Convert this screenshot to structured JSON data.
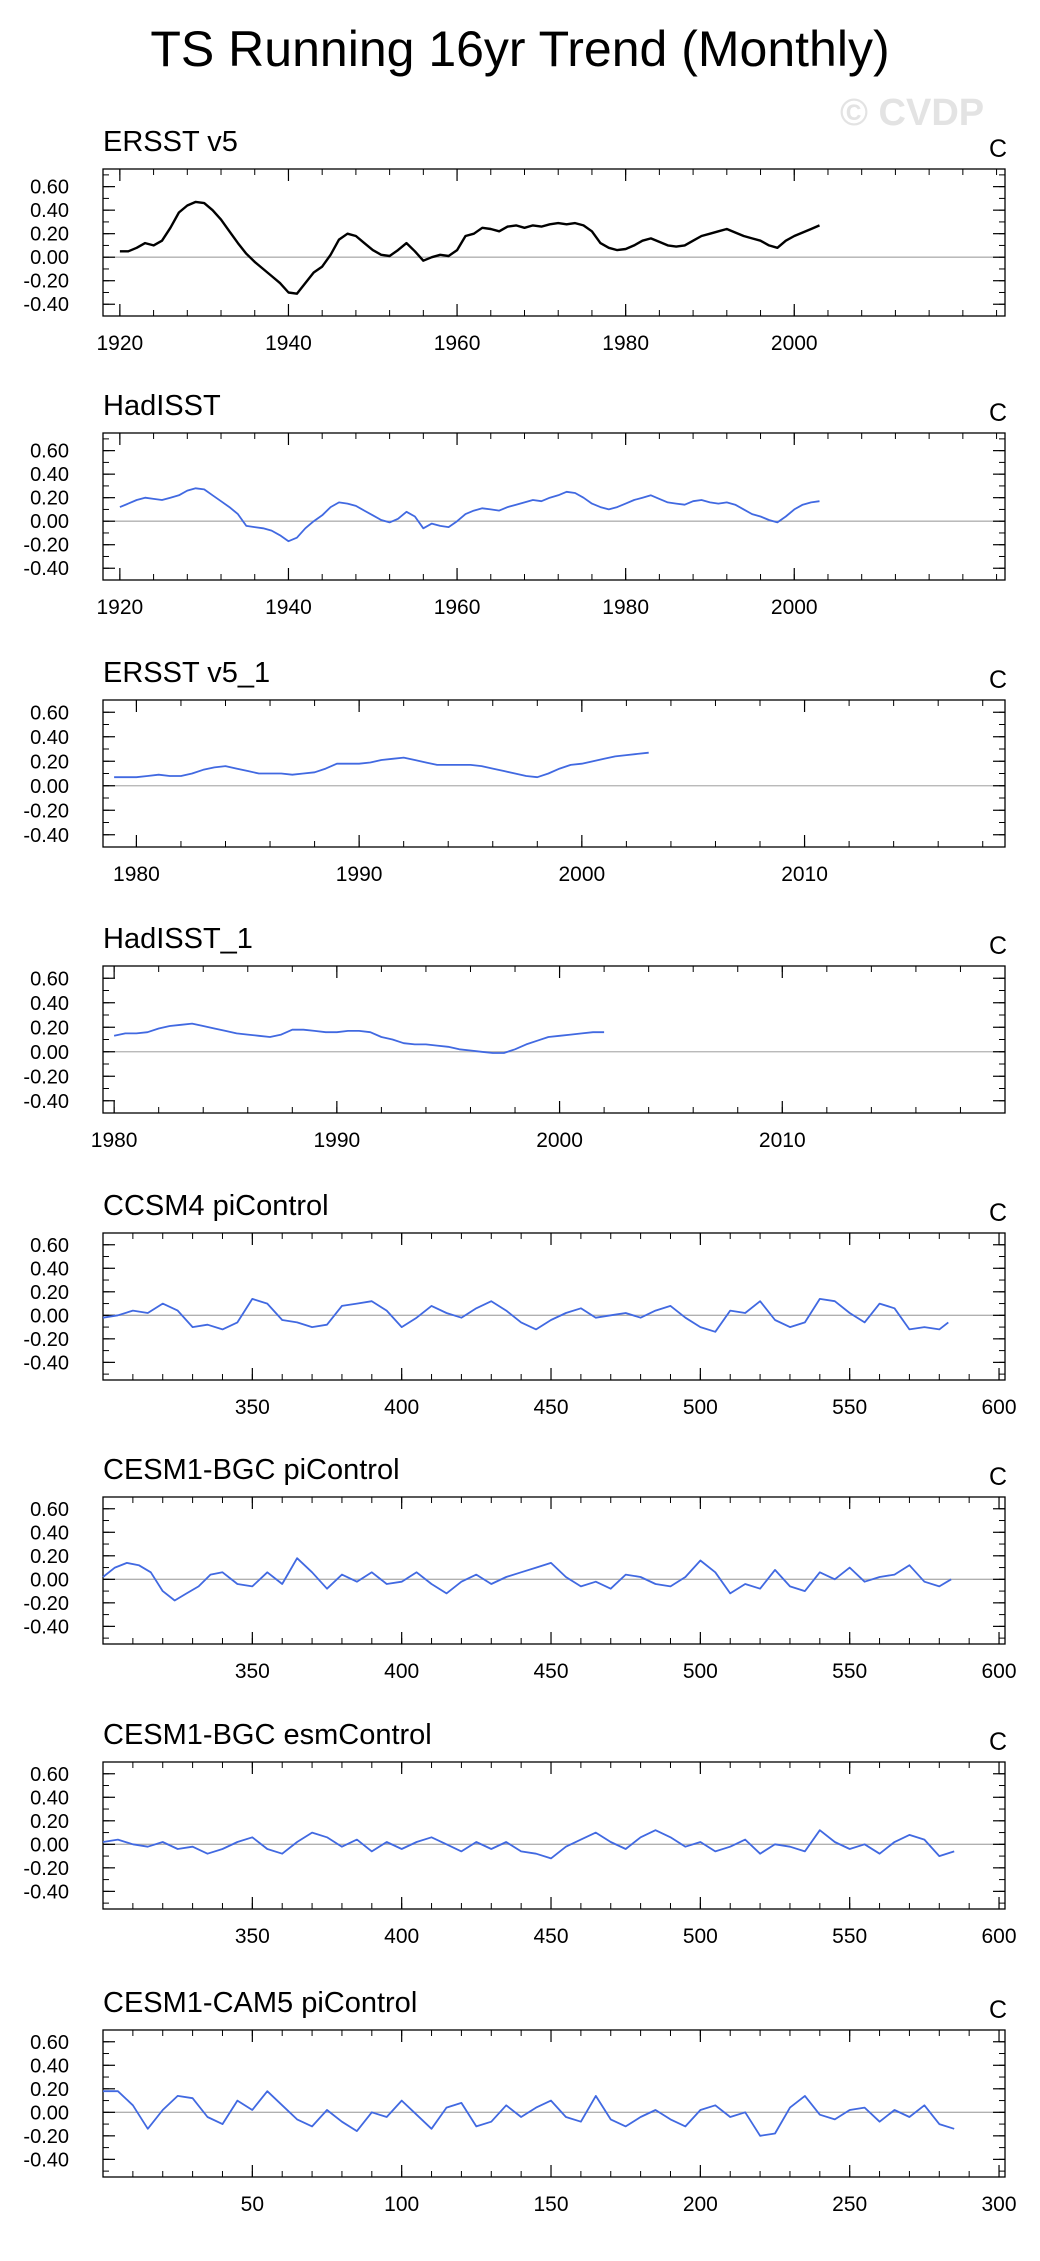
{
  "title": "TS Running 16yr Trend (Monthly)",
  "watermark": "© CVDP",
  "colors": {
    "observed": "#000000",
    "model": "#4169e1",
    "zero_line": "#b0b0b0",
    "axis": "#000000"
  },
  "chart_data": [
    {
      "type": "line",
      "title": "ERSST v5",
      "units": "C",
      "xlim": [
        1918,
        2025
      ],
      "ylim": [
        -0.5,
        0.75
      ],
      "xticks": [
        1920,
        1940,
        1960,
        1980,
        2000
      ],
      "yticks": [
        -0.4,
        -0.2,
        0.0,
        0.2,
        0.4,
        0.6
      ],
      "ytick_labels": [
        "-0.40",
        "-0.20",
        "0.00",
        "0.20",
        "0.40",
        "0.60"
      ],
      "color": "#000000",
      "zero_line": true,
      "x": [
        1920,
        1921,
        1922,
        1923,
        1924,
        1925,
        1926,
        1927,
        1928,
        1929,
        1930,
        1931,
        1932,
        1933,
        1934,
        1935,
        1936,
        1937,
        1938,
        1939,
        1940,
        1941,
        1942,
        1943,
        1944,
        1945,
        1946,
        1947,
        1948,
        1949,
        1950,
        1951,
        1952,
        1953,
        1954,
        1955,
        1956,
        1957,
        1958,
        1959,
        1960,
        1961,
        1962,
        1963,
        1964,
        1965,
        1966,
        1967,
        1968,
        1969,
        1970,
        1971,
        1972,
        1973,
        1974,
        1975,
        1976,
        1977,
        1978,
        1979,
        1980,
        1981,
        1982,
        1983,
        1984,
        1985,
        1986,
        1987,
        1988,
        1989,
        1990,
        1991,
        1992,
        1993,
        1994,
        1995,
        1996,
        1997,
        1998,
        1999,
        2000,
        2001,
        2002,
        2003
      ],
      "y": [
        0.05,
        0.05,
        0.08,
        0.12,
        0.1,
        0.14,
        0.25,
        0.38,
        0.44,
        0.47,
        0.46,
        0.4,
        0.32,
        0.22,
        0.12,
        0.03,
        -0.04,
        -0.1,
        -0.16,
        -0.22,
        -0.3,
        -0.31,
        -0.22,
        -0.13,
        -0.08,
        0.02,
        0.15,
        0.2,
        0.18,
        0.12,
        0.06,
        0.02,
        0.01,
        0.06,
        0.12,
        0.05,
        -0.03,
        0.0,
        0.02,
        0.01,
        0.06,
        0.18,
        0.2,
        0.25,
        0.24,
        0.22,
        0.26,
        0.27,
        0.25,
        0.27,
        0.26,
        0.28,
        0.29,
        0.28,
        0.29,
        0.27,
        0.22,
        0.12,
        0.08,
        0.06,
        0.07,
        0.1,
        0.14,
        0.16,
        0.13,
        0.1,
        0.09,
        0.1,
        0.14,
        0.18,
        0.2,
        0.22,
        0.24,
        0.21,
        0.18,
        0.16,
        0.14,
        0.1,
        0.08,
        0.14,
        0.18,
        0.21,
        0.24,
        0.27
      ]
    },
    {
      "type": "line",
      "title": "HadISST",
      "units": "C",
      "xlim": [
        1918,
        2025
      ],
      "ylim": [
        -0.5,
        0.75
      ],
      "xticks": [
        1920,
        1940,
        1960,
        1980,
        2000
      ],
      "yticks": [
        -0.4,
        -0.2,
        0.0,
        0.2,
        0.4,
        0.6
      ],
      "ytick_labels": [
        "-0.40",
        "-0.20",
        "0.00",
        "0.20",
        "0.40",
        "0.60"
      ],
      "color": "#4169e1",
      "zero_line": true,
      "x": [
        1920,
        1921,
        1922,
        1923,
        1924,
        1925,
        1926,
        1927,
        1928,
        1929,
        1930,
        1931,
        1932,
        1933,
        1934,
        1935,
        1936,
        1937,
        1938,
        1939,
        1940,
        1941,
        1942,
        1943,
        1944,
        1945,
        1946,
        1947,
        1948,
        1949,
        1950,
        1951,
        1952,
        1953,
        1954,
        1955,
        1956,
        1957,
        1958,
        1959,
        1960,
        1961,
        1962,
        1963,
        1964,
        1965,
        1966,
        1967,
        1968,
        1969,
        1970,
        1971,
        1972,
        1973,
        1974,
        1975,
        1976,
        1977,
        1978,
        1979,
        1980,
        1981,
        1982,
        1983,
        1984,
        1985,
        1986,
        1987,
        1988,
        1989,
        1990,
        1991,
        1992,
        1993,
        1994,
        1995,
        1996,
        1997,
        1998,
        1999,
        2000,
        2001,
        2002,
        2003
      ],
      "y": [
        0.12,
        0.15,
        0.18,
        0.2,
        0.19,
        0.18,
        0.2,
        0.22,
        0.26,
        0.28,
        0.27,
        0.22,
        0.17,
        0.12,
        0.06,
        -0.04,
        -0.05,
        -0.06,
        -0.08,
        -0.12,
        -0.17,
        -0.14,
        -0.06,
        0.0,
        0.05,
        0.12,
        0.16,
        0.15,
        0.13,
        0.09,
        0.05,
        0.01,
        -0.01,
        0.02,
        0.08,
        0.04,
        -0.06,
        -0.02,
        -0.04,
        -0.05,
        0.0,
        0.06,
        0.09,
        0.11,
        0.1,
        0.09,
        0.12,
        0.14,
        0.16,
        0.18,
        0.17,
        0.2,
        0.22,
        0.25,
        0.24,
        0.2,
        0.15,
        0.12,
        0.1,
        0.12,
        0.15,
        0.18,
        0.2,
        0.22,
        0.19,
        0.16,
        0.15,
        0.14,
        0.17,
        0.18,
        0.16,
        0.15,
        0.16,
        0.14,
        0.1,
        0.06,
        0.04,
        0.01,
        -0.01,
        0.04,
        0.1,
        0.14,
        0.16,
        0.17
      ]
    },
    {
      "type": "line",
      "title": "ERSST v5_1",
      "units": "C",
      "xlim": [
        1978.5,
        2019
      ],
      "ylim": [
        -0.5,
        0.7
      ],
      "xticks": [
        1980,
        1990,
        2000,
        2010
      ],
      "yticks": [
        -0.4,
        -0.2,
        0.0,
        0.2,
        0.4,
        0.6
      ],
      "ytick_labels": [
        "-0.40",
        "-0.20",
        "0.00",
        "0.20",
        "0.40",
        "0.60"
      ],
      "color": "#4169e1",
      "zero_line": true,
      "x": [
        1979,
        1979.5,
        1980,
        1980.5,
        1981,
        1981.5,
        1982,
        1982.5,
        1983,
        1983.5,
        1984,
        1984.5,
        1985,
        1985.5,
        1986,
        1986.5,
        1987,
        1987.5,
        1988,
        1988.5,
        1989,
        1989.5,
        1990,
        1990.5,
        1991,
        1991.5,
        1992,
        1992.5,
        1993,
        1993.5,
        1994,
        1994.5,
        1995,
        1995.5,
        1996,
        1996.5,
        1997,
        1997.5,
        1998,
        1998.5,
        1999,
        1999.5,
        2000,
        2000.5,
        2001,
        2001.5,
        2002,
        2002.5,
        2003
      ],
      "y": [
        0.07,
        0.07,
        0.07,
        0.08,
        0.09,
        0.08,
        0.08,
        0.1,
        0.13,
        0.15,
        0.16,
        0.14,
        0.12,
        0.1,
        0.1,
        0.1,
        0.09,
        0.1,
        0.11,
        0.14,
        0.18,
        0.18,
        0.18,
        0.19,
        0.21,
        0.22,
        0.23,
        0.21,
        0.19,
        0.17,
        0.17,
        0.17,
        0.17,
        0.16,
        0.14,
        0.12,
        0.1,
        0.08,
        0.07,
        0.1,
        0.14,
        0.17,
        0.18,
        0.2,
        0.22,
        0.24,
        0.25,
        0.26,
        0.27
      ]
    },
    {
      "type": "line",
      "title": "HadISST_1",
      "units": "C",
      "xlim": [
        1979.5,
        2020
      ],
      "ylim": [
        -0.5,
        0.7
      ],
      "xticks": [
        1980,
        1990,
        2000,
        2010
      ],
      "yticks": [
        -0.4,
        -0.2,
        0.0,
        0.2,
        0.4,
        0.6
      ],
      "ytick_labels": [
        "-0.40",
        "-0.20",
        "0.00",
        "0.20",
        "0.40",
        "0.60"
      ],
      "color": "#4169e1",
      "zero_line": true,
      "x": [
        1980,
        1980.5,
        1981,
        1981.5,
        1982,
        1982.5,
        1983,
        1983.5,
        1984,
        1984.5,
        1985,
        1985.5,
        1986,
        1986.5,
        1987,
        1987.5,
        1988,
        1988.5,
        1989,
        1989.5,
        1990,
        1990.5,
        1991,
        1991.5,
        1992,
        1992.5,
        1993,
        1993.5,
        1994,
        1994.5,
        1995,
        1995.5,
        1996,
        1996.5,
        1997,
        1997.5,
        1998,
        1998.5,
        1999,
        1999.5,
        2000,
        2000.5,
        2001,
        2001.5,
        2002
      ],
      "y": [
        0.13,
        0.15,
        0.15,
        0.16,
        0.19,
        0.21,
        0.22,
        0.23,
        0.21,
        0.19,
        0.17,
        0.15,
        0.14,
        0.13,
        0.12,
        0.14,
        0.18,
        0.18,
        0.17,
        0.16,
        0.16,
        0.17,
        0.17,
        0.16,
        0.12,
        0.1,
        0.07,
        0.06,
        0.06,
        0.05,
        0.04,
        0.02,
        0.01,
        0.0,
        -0.01,
        -0.01,
        0.02,
        0.06,
        0.09,
        0.12,
        0.13,
        0.14,
        0.15,
        0.16,
        0.16
      ]
    },
    {
      "type": "line",
      "title": "CCSM4 piControl",
      "units": "C",
      "xlim": [
        300,
        602
      ],
      "ylim": [
        -0.55,
        0.7
      ],
      "xticks": [
        350,
        400,
        450,
        500,
        550,
        600
      ],
      "yticks": [
        -0.4,
        -0.2,
        0.0,
        0.2,
        0.4,
        0.6
      ],
      "ytick_labels": [
        "-0.40",
        "-0.20",
        "0.00",
        "0.20",
        "0.40",
        "0.60"
      ],
      "color": "#4169e1",
      "zero_line": true,
      "x": [
        300,
        305,
        310,
        315,
        320,
        325,
        330,
        335,
        340,
        345,
        350,
        355,
        360,
        365,
        370,
        375,
        380,
        385,
        390,
        395,
        400,
        405,
        410,
        415,
        420,
        425,
        430,
        435,
        440,
        445,
        450,
        455,
        460,
        465,
        470,
        475,
        480,
        485,
        490,
        495,
        500,
        505,
        510,
        515,
        520,
        525,
        530,
        535,
        540,
        545,
        550,
        555,
        560,
        565,
        570,
        575,
        580,
        583
      ],
      "y": [
        -0.02,
        0.0,
        0.04,
        0.02,
        0.1,
        0.04,
        -0.1,
        -0.08,
        -0.12,
        -0.06,
        0.14,
        0.1,
        -0.04,
        -0.06,
        -0.1,
        -0.08,
        0.08,
        0.1,
        0.12,
        0.04,
        -0.1,
        -0.02,
        0.08,
        0.02,
        -0.02,
        0.06,
        0.12,
        0.04,
        -0.06,
        -0.12,
        -0.04,
        0.02,
        0.06,
        -0.02,
        0.0,
        0.02,
        -0.02,
        0.04,
        0.08,
        -0.02,
        -0.1,
        -0.14,
        0.04,
        0.02,
        0.12,
        -0.04,
        -0.1,
        -0.06,
        0.14,
        0.12,
        0.02,
        -0.06,
        0.1,
        0.06,
        -0.12,
        -0.1,
        -0.12,
        -0.06
      ]
    },
    {
      "type": "line",
      "title": "CESM1-BGC piControl",
      "units": "C",
      "xlim": [
        300,
        602
      ],
      "ylim": [
        -0.55,
        0.7
      ],
      "xticks": [
        350,
        400,
        450,
        500,
        550,
        600
      ],
      "yticks": [
        -0.4,
        -0.2,
        0.0,
        0.2,
        0.4,
        0.6
      ],
      "ytick_labels": [
        "-0.40",
        "-0.20",
        "0.00",
        "0.20",
        "0.40",
        "0.60"
      ],
      "color": "#4169e1",
      "zero_line": true,
      "x": [
        300,
        304,
        308,
        312,
        316,
        320,
        324,
        328,
        332,
        336,
        340,
        345,
        350,
        355,
        360,
        365,
        370,
        375,
        380,
        385,
        390,
        395,
        400,
        405,
        410,
        415,
        420,
        425,
        430,
        435,
        440,
        445,
        450,
        455,
        460,
        465,
        470,
        475,
        480,
        485,
        490,
        495,
        500,
        505,
        510,
        515,
        520,
        525,
        530,
        535,
        540,
        545,
        550,
        555,
        560,
        565,
        570,
        575,
        580,
        584
      ],
      "y": [
        0.02,
        0.1,
        0.14,
        0.12,
        0.06,
        -0.1,
        -0.18,
        -0.12,
        -0.06,
        0.04,
        0.06,
        -0.04,
        -0.06,
        0.06,
        -0.04,
        0.18,
        0.06,
        -0.08,
        0.04,
        -0.02,
        0.06,
        -0.04,
        -0.02,
        0.06,
        -0.04,
        -0.12,
        -0.02,
        0.04,
        -0.04,
        0.02,
        0.06,
        0.1,
        0.14,
        0.02,
        -0.06,
        -0.02,
        -0.08,
        0.04,
        0.02,
        -0.04,
        -0.06,
        0.02,
        0.16,
        0.06,
        -0.12,
        -0.04,
        -0.08,
        0.08,
        -0.06,
        -0.1,
        0.06,
        0.0,
        0.1,
        -0.02,
        0.02,
        0.04,
        0.12,
        -0.02,
        -0.06,
        0.0
      ]
    },
    {
      "type": "line",
      "title": "CESM1-BGC esmControl",
      "units": "C",
      "xlim": [
        300,
        602
      ],
      "ylim": [
        -0.55,
        0.7
      ],
      "xticks": [
        350,
        400,
        450,
        500,
        550,
        600
      ],
      "yticks": [
        -0.4,
        -0.2,
        0.0,
        0.2,
        0.4,
        0.6
      ],
      "ytick_labels": [
        "-0.40",
        "-0.20",
        "0.00",
        "0.20",
        "0.40",
        "0.60"
      ],
      "color": "#4169e1",
      "zero_line": true,
      "x": [
        300,
        305,
        310,
        315,
        320,
        325,
        330,
        335,
        340,
        345,
        350,
        355,
        360,
        365,
        370,
        375,
        380,
        385,
        390,
        395,
        400,
        405,
        410,
        415,
        420,
        425,
        430,
        435,
        440,
        445,
        450,
        455,
        460,
        465,
        470,
        475,
        480,
        485,
        490,
        495,
        500,
        505,
        510,
        515,
        520,
        525,
        530,
        535,
        540,
        545,
        550,
        555,
        560,
        565,
        570,
        575,
        580,
        585
      ],
      "y": [
        0.02,
        0.04,
        0.0,
        -0.02,
        0.02,
        -0.04,
        -0.02,
        -0.08,
        -0.04,
        0.02,
        0.06,
        -0.04,
        -0.08,
        0.02,
        0.1,
        0.06,
        -0.02,
        0.04,
        -0.06,
        0.02,
        -0.04,
        0.02,
        0.06,
        0.0,
        -0.06,
        0.02,
        -0.04,
        0.02,
        -0.06,
        -0.08,
        -0.12,
        -0.02,
        0.04,
        0.1,
        0.02,
        -0.04,
        0.06,
        0.12,
        0.06,
        -0.02,
        0.02,
        -0.06,
        -0.02,
        0.04,
        -0.08,
        0.0,
        -0.02,
        -0.06,
        0.12,
        0.02,
        -0.04,
        0.0,
        -0.08,
        0.02,
        0.08,
        0.04,
        -0.1,
        -0.06
      ]
    },
    {
      "type": "line",
      "title": "CESM1-CAM5 piControl",
      "units": "C",
      "xlim": [
        0,
        302
      ],
      "ylim": [
        -0.55,
        0.7
      ],
      "xticks": [
        50,
        100,
        150,
        200,
        250,
        300
      ],
      "yticks": [
        -0.4,
        -0.2,
        0.0,
        0.2,
        0.4,
        0.6
      ],
      "ytick_labels": [
        "-0.40",
        "-0.20",
        "0.00",
        "0.20",
        "0.40",
        "0.60"
      ],
      "color": "#4169e1",
      "zero_line": true,
      "x": [
        0,
        5,
        10,
        15,
        20,
        25,
        30,
        35,
        40,
        45,
        50,
        55,
        60,
        65,
        70,
        75,
        80,
        85,
        90,
        95,
        100,
        105,
        110,
        115,
        120,
        125,
        130,
        135,
        140,
        145,
        150,
        155,
        160,
        165,
        170,
        175,
        180,
        185,
        190,
        195,
        200,
        205,
        210,
        215,
        220,
        225,
        230,
        235,
        240,
        245,
        250,
        255,
        260,
        265,
        270,
        275,
        280,
        285
      ],
      "y": [
        0.18,
        0.18,
        0.06,
        -0.14,
        0.02,
        0.14,
        0.12,
        -0.04,
        -0.1,
        0.1,
        0.02,
        0.18,
        0.06,
        -0.06,
        -0.12,
        0.02,
        -0.08,
        -0.16,
        0.0,
        -0.04,
        0.1,
        -0.02,
        -0.14,
        0.04,
        0.08,
        -0.12,
        -0.08,
        0.06,
        -0.04,
        0.04,
        0.1,
        -0.04,
        -0.08,
        0.14,
        -0.06,
        -0.12,
        -0.04,
        0.02,
        -0.06,
        -0.12,
        0.02,
        0.06,
        -0.04,
        0.0,
        -0.2,
        -0.18,
        0.04,
        0.14,
        -0.02,
        -0.06,
        0.02,
        0.04,
        -0.08,
        0.02,
        -0.04,
        0.06,
        -0.1,
        -0.14
      ]
    }
  ]
}
